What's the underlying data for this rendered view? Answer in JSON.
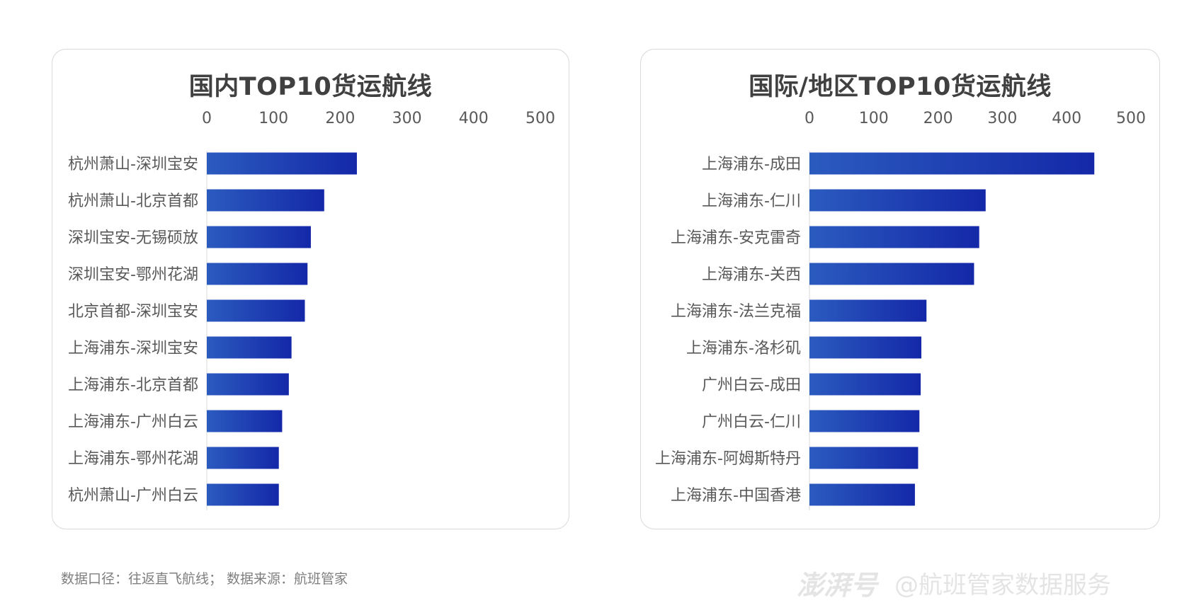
{
  "colors": {
    "bar_start": "#2b5bbf",
    "bar_end": "#1428a8",
    "axis": "#d9d9d9"
  },
  "chart_data": [
    {
      "type": "bar",
      "orientation": "horizontal",
      "title": "国内TOP10货运航线",
      "categories": [
        "杭州萧山-深圳宝安",
        "杭州萧山-北京首都",
        "深圳宝安-无锡硕放",
        "深圳宝安-鄂州花湖",
        "北京首都-深圳宝安",
        "上海浦东-深圳宝安",
        "上海浦东-北京首都",
        "上海浦东-广州白云",
        "上海浦东-鄂州花湖",
        "杭州萧山-广州白云"
      ],
      "values": [
        225,
        176,
        156,
        151,
        147,
        127,
        123,
        113,
        108,
        108
      ],
      "ticks": [
        0,
        100,
        200,
        300,
        400,
        500
      ],
      "xlim": [
        0,
        500
      ],
      "axis_position": "top"
    },
    {
      "type": "bar",
      "orientation": "horizontal",
      "title": "国际/地区TOP10货运航线",
      "categories": [
        "上海浦东-成田",
        "上海浦东-仁川",
        "上海浦东-安克雷奇",
        "上海浦东-关西",
        "上海浦东-法兰克福",
        "上海浦东-洛杉矶",
        "广州白云-成田",
        "广州白云-仁川",
        "上海浦东-阿姆斯特丹",
        "上海浦东-中国香港"
      ],
      "values": [
        443,
        274,
        264,
        256,
        182,
        174,
        173,
        171,
        169,
        164
      ],
      "ticks": [
        0,
        100,
        200,
        300,
        400,
        500
      ],
      "xlim": [
        0,
        500
      ],
      "axis_position": "top"
    }
  ],
  "footer": {
    "note": "数据口径：往返直飞航线；   数据来源：航班管家"
  },
  "watermark": {
    "logo": "澎湃号",
    "text": "@航班管家数据服务"
  }
}
